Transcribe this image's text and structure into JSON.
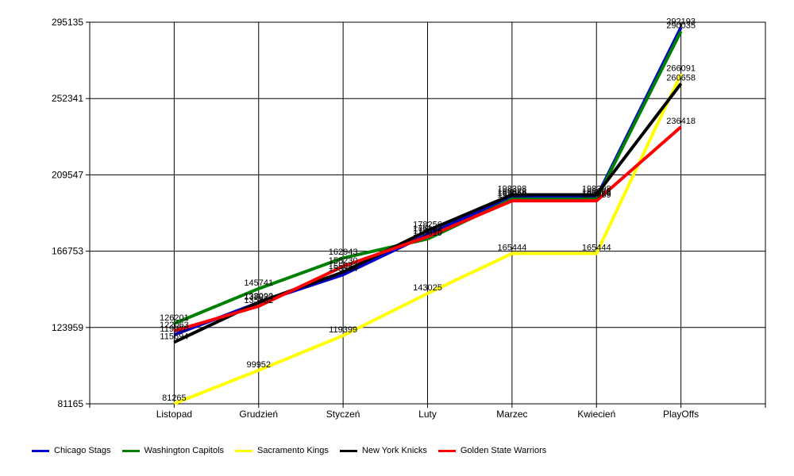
{
  "chart_data": {
    "type": "line",
    "categories": [
      "Listopad",
      "Grudzień",
      "Styczeń",
      "Luty",
      "Marzec",
      "Kwiecień",
      "PlayOffs"
    ],
    "y_ticks": [
      "81165",
      "123959",
      "166753",
      "209547",
      "252341",
      "295135"
    ],
    "ylim": [
      81165,
      295135
    ],
    "grid": true,
    "legend_position": "bottom",
    "series": [
      {
        "name": "Chicago Stags",
        "color": "#0000cc",
        "values": [
          119920,
          137920,
          153594,
          176142,
          196922,
          196922,
          292193
        ]
      },
      {
        "name": "Washington Capitols",
        "color": "#008000",
        "values": [
          126201,
          145741,
          162943,
          173610,
          195959,
          195959,
          290035
        ]
      },
      {
        "name": "Sacramento Kings",
        "color": "#ffff00",
        "values": [
          81265,
          99952,
          119399,
          143025,
          165444,
          165444,
          266091
        ]
      },
      {
        "name": "New York Knicks",
        "color": "#000000",
        "values": [
          115694,
          138093,
          155023,
          178256,
          198398,
          198398,
          260658
        ]
      },
      {
        "name": "Golden State Warriors",
        "color": "#ff0000",
        "values": [
          122063,
          135882,
          158230,
          174898,
          194969,
          194969,
          236418
        ]
      }
    ]
  }
}
